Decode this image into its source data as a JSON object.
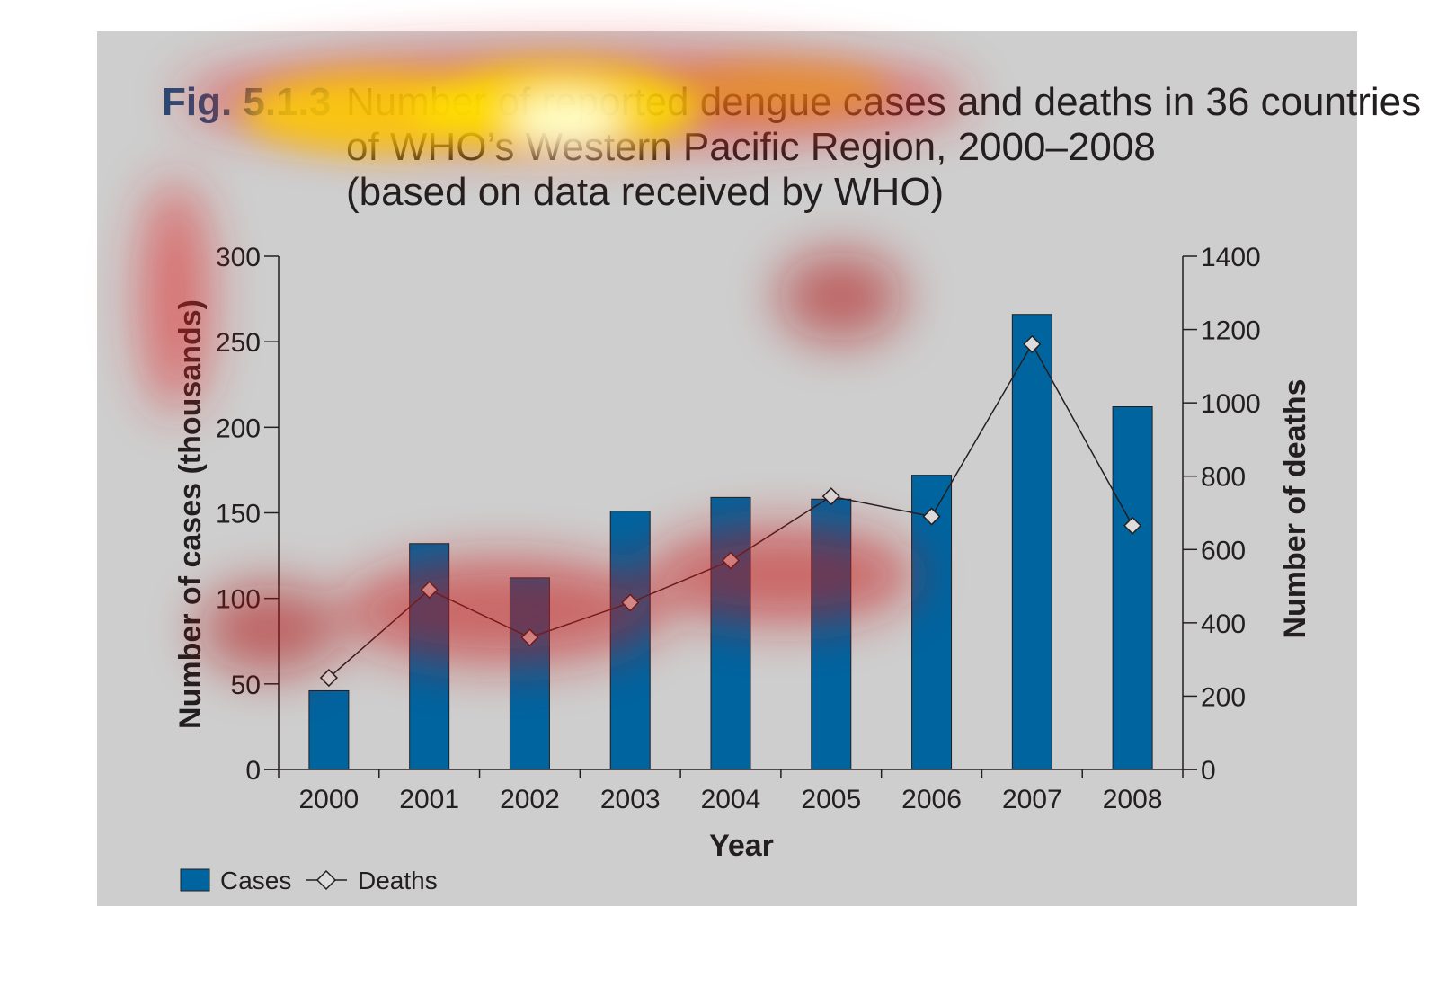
{
  "figure": {
    "number": "Fig. 5.1.3",
    "title_lines": [
      "Number of reported dengue cases and deaths in 36 countries",
      "of WHO’s Western Pacific Region, 2000–2008",
      "(based on data received by WHO)"
    ]
  },
  "colors": {
    "background": "#cecece",
    "bars": "#00649f",
    "figure_number": "#1f4e79",
    "text": "#231f20"
  },
  "chart_data": {
    "type": "bar",
    "categories": [
      "2000",
      "2001",
      "2002",
      "2003",
      "2004",
      "2005",
      "2006",
      "2007",
      "2008"
    ],
    "series": [
      {
        "name": "Cases",
        "type": "bar",
        "axis": "left",
        "values": [
          46,
          132,
          112,
          151,
          159,
          158,
          172,
          266,
          212
        ]
      },
      {
        "name": "Deaths",
        "type": "line",
        "marker": "diamond",
        "axis": "right",
        "values": [
          250,
          490,
          360,
          455,
          570,
          745,
          690,
          1160,
          665
        ]
      }
    ],
    "xlabel": "Year",
    "ylabel": "Number of cases (thousands)",
    "y2label": "Number of deaths",
    "ylim": [
      0,
      300
    ],
    "y2lim": [
      0,
      1400
    ],
    "yticks": [
      "0",
      "50",
      "100",
      "150",
      "200",
      "250",
      "300"
    ],
    "y2ticks": [
      "0",
      "200",
      "400",
      "600",
      "800",
      "1000",
      "1200",
      "1400"
    ],
    "grid": false,
    "legend": {
      "placement": "bottom-left",
      "entries": [
        "Cases",
        "Deaths"
      ]
    }
  }
}
